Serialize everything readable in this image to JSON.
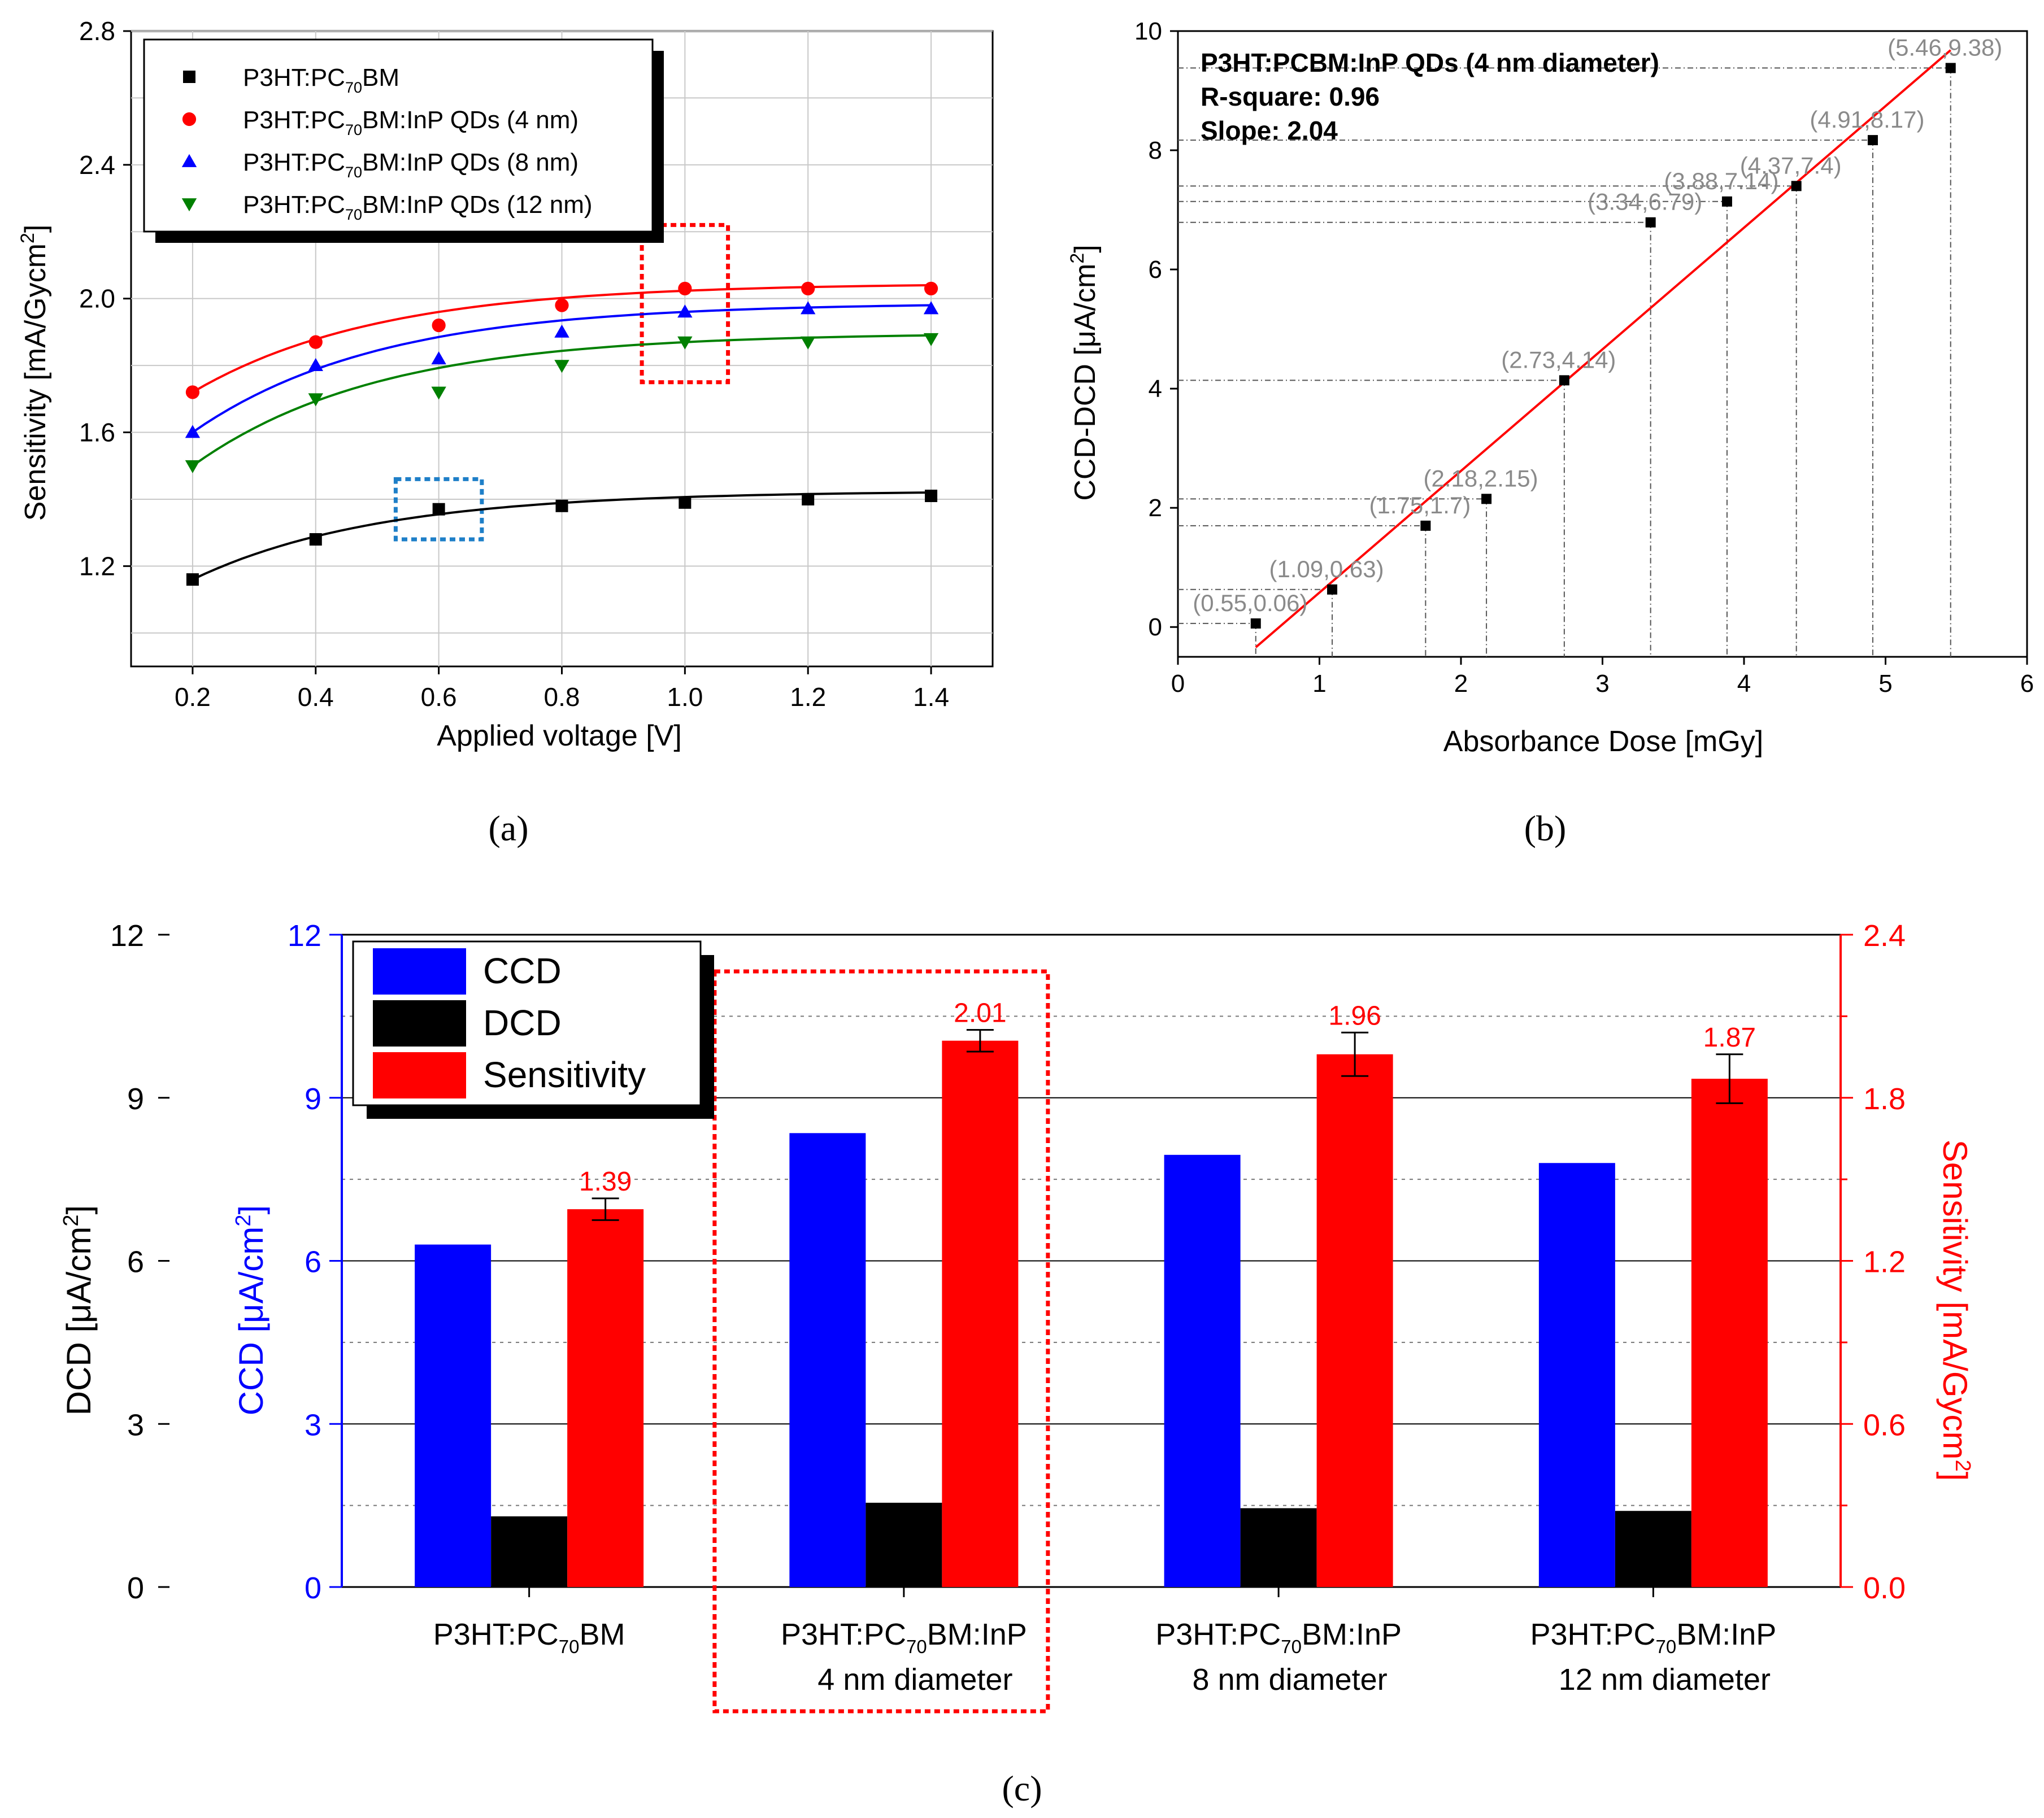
{
  "panel_labels": [
    "(a)",
    "(b)",
    "(c)"
  ],
  "chart_data": [
    {
      "type": "scatter",
      "panel": "(a)",
      "xlabel": "Applied voltage [V]",
      "ylabel": "Sensitivity [mA/Gycm²]",
      "xlim": [
        0.1,
        1.5
      ],
      "ylim": [
        0.9,
        2.8
      ],
      "xticks": [
        "0.2",
        "0.4",
        "0.6",
        "0.8",
        "1.0",
        "1.2",
        "1.4"
      ],
      "yticks": [
        "1.2",
        "1.6",
        "2.0",
        "2.4",
        "2.8"
      ],
      "grid": true,
      "legend": "top-left",
      "x": [
        0.2,
        0.4,
        0.6,
        0.8,
        1.0,
        1.2,
        1.4
      ],
      "series": [
        {
          "name": "P3HT:PC70BM",
          "marker": "square",
          "color": "#000000",
          "values": [
            1.16,
            1.28,
            1.37,
            1.38,
            1.39,
            1.4,
            1.41
          ]
        },
        {
          "name": "P3HT:PC70BM:InP QDs (4 nm)",
          "marker": "circle",
          "color": "#ff0000",
          "values": [
            1.72,
            1.87,
            1.92,
            1.98,
            2.03,
            2.03,
            2.03
          ]
        },
        {
          "name": "P3HT:PC70BM:InP QDs (8 nm)",
          "marker": "triangle-up",
          "color": "#0000ff",
          "values": [
            1.6,
            1.8,
            1.82,
            1.9,
            1.96,
            1.97,
            1.97
          ]
        },
        {
          "name": "P3HT:PC70BM:InP QDs (12 nm)",
          "marker": "triangle-down",
          "color": "#008000",
          "values": [
            1.5,
            1.7,
            1.72,
            1.8,
            1.87,
            1.87,
            1.88
          ]
        }
      ],
      "legend_entries": [
        {
          "pre": "P3HT:PC",
          "sub": "70",
          "post": "BM"
        },
        {
          "pre": "P3HT:PC",
          "sub": "70",
          "post": "BM:InP QDs (4 nm)"
        },
        {
          "pre": "P3HT:PC",
          "sub": "70",
          "post": "BM:InP QDs (8 nm)"
        },
        {
          "pre": "P3HT:PC",
          "sub": "70",
          "post": "BM:InP QDs (12 nm)"
        }
      ],
      "highlights": [
        {
          "x_range": [
            0.93,
            1.07
          ],
          "y_range": [
            1.75,
            2.22
          ],
          "color": "#ff0000"
        },
        {
          "x_range": [
            0.53,
            0.67
          ],
          "y_range": [
            1.28,
            1.46
          ],
          "color": "#1e7fc8"
        }
      ]
    },
    {
      "type": "scatter",
      "panel": "(b)",
      "title_lines": [
        "P3HT:PCBM:InP QDs (4 nm diameter)",
        "R-square: 0.96",
        "Slope: 2.04"
      ],
      "xlabel": "Absorbance Dose [mGy]",
      "ylabel": "CCD-DCD [μA/cm²]",
      "xlim": [
        0,
        6
      ],
      "ylim": [
        -0.5,
        10
      ],
      "xticks": [
        "0",
        "1",
        "2",
        "3",
        "4",
        "5",
        "6"
      ],
      "yticks": [
        "0",
        "2",
        "4",
        "6",
        "8",
        "10"
      ],
      "x": [
        0.55,
        1.09,
        1.75,
        2.18,
        2.73,
        3.34,
        3.88,
        4.37,
        4.91,
        5.46
      ],
      "values": [
        0.06,
        0.63,
        1.7,
        2.15,
        4.14,
        6.79,
        7.14,
        7.4,
        8.17,
        9.38
      ],
      "point_labels": [
        "(0.55,0.06)",
        "(1.09,0.63)",
        "(1.75,1.7)",
        "(2.18,2.15)",
        "(2.73,4.14)",
        "(3.34,6.79)",
        "(3.88,7.14)",
        "(4.37,7.4)",
        "(4.91,8.17)",
        "(5.46,9.38)"
      ],
      "fit_line": {
        "x": [
          0.55,
          5.46
        ],
        "y": [
          -0.34,
          9.68
        ],
        "color": "#ff0000"
      }
    },
    {
      "type": "bar",
      "panel": "(c)",
      "categories": [
        {
          "pre": "P3HT:PC",
          "sub": "70",
          "post": "BM",
          "line2": ""
        },
        {
          "pre": "P3HT:PC",
          "sub": "70",
          "post": "BM:InP",
          "line2": "4 nm diameter"
        },
        {
          "pre": "P3HT:PC",
          "sub": "70",
          "post": "BM:InP",
          "line2": "8 nm diameter"
        },
        {
          "pre": "P3HT:PC",
          "sub": "70",
          "post": "BM:InP",
          "line2": "12 nm diameter"
        }
      ],
      "left_axis_dcd": {
        "label": "DCD [μA/cm²]",
        "ylim": [
          0,
          12
        ],
        "ticks": [
          "0",
          "3",
          "6",
          "9",
          "12"
        ],
        "color": "#000000"
      },
      "left_axis_ccd": {
        "label": "CCD [μA/cm²]",
        "ylim": [
          0,
          12
        ],
        "ticks": [
          "0",
          "3",
          "6",
          "9",
          "12"
        ],
        "color": "#0000ff"
      },
      "right_axis": {
        "label": "Sensitivity [mA/Gycm²]",
        "ylim": [
          0,
          2.4
        ],
        "ticks": [
          "0.0",
          "0.6",
          "1.2",
          "1.8",
          "2.4"
        ],
        "color": "#ff0000"
      },
      "legend": "top-left",
      "series": [
        {
          "name": "CCD",
          "color": "#0000ff",
          "axis": "ccd",
          "values": [
            6.3,
            8.35,
            7.95,
            7.8
          ]
        },
        {
          "name": "DCD",
          "color": "#000000",
          "axis": "dcd",
          "values": [
            1.3,
            1.55,
            1.45,
            1.4
          ]
        },
        {
          "name": "Sensitivity",
          "color": "#ff0000",
          "axis": "right",
          "values": [
            1.39,
            2.01,
            1.96,
            1.87
          ],
          "errors": [
            0.04,
            0.04,
            0.08,
            0.09
          ]
        }
      ],
      "value_labels": [
        "1.39",
        "2.01",
        "1.96",
        "1.87"
      ],
      "highlight_category": 1
    }
  ]
}
